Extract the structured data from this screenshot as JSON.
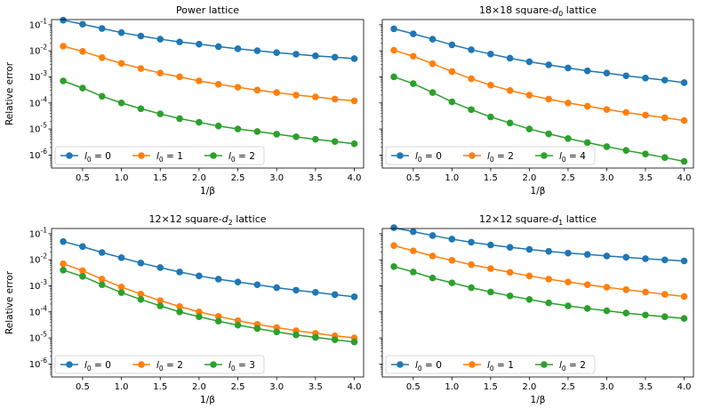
{
  "chart_data": [
    {
      "type": "line",
      "title_main": "Power lattice",
      "title_sub": "",
      "title_tail": "",
      "xlabel": "1/β",
      "ylabel": "Relative error",
      "yscale": "log",
      "ylim_exp": [
        -6.5,
        -0.8
      ],
      "xlim": [
        0.1,
        4.12
      ],
      "xticks": [
        "0.5",
        "1.0",
        "1.5",
        "2.0",
        "2.5",
        "3.0",
        "3.5",
        "4.0"
      ],
      "yticks": [
        "-1",
        "-2",
        "-3",
        "-4",
        "-5",
        "-6"
      ],
      "x": [
        0.25,
        0.5,
        0.75,
        1.0,
        1.25,
        1.5,
        1.75,
        2.0,
        2.25,
        2.5,
        2.75,
        3.0,
        3.25,
        3.5,
        3.75,
        4.0
      ],
      "series": [
        {
          "name": "0",
          "color": "#1f77b4",
          "values": [
            0.15,
            0.105,
            0.072,
            0.05,
            0.037,
            0.028,
            0.022,
            0.018,
            0.0145,
            0.012,
            0.0101,
            0.0085,
            0.0074,
            0.0064,
            0.0057,
            0.005
          ]
        },
        {
          "name": "1",
          "color": "#ff7f0e",
          "values": [
            0.015,
            0.0095,
            0.0055,
            0.0033,
            0.0021,
            0.0014,
            0.001,
            0.0007,
            0.00052,
            0.0004,
            0.00031,
            0.00025,
            0.0002,
            0.00017,
            0.00014,
            0.00012
          ]
        },
        {
          "name": "2",
          "color": "#2ca02c",
          "values": [
            0.0007,
            0.00037,
            0.00018,
            0.0001,
            6e-05,
            3.8e-05,
            2.5e-05,
            1.8e-05,
            1.3e-05,
            1e-05,
            8e-06,
            6.3e-06,
            5e-06,
            4e-06,
            3.3e-06,
            2.7e-06
          ]
        }
      ]
    },
    {
      "type": "line",
      "title_main": "18×18 square-",
      "title_sub": "0",
      "title_tail": " lattice",
      "xlabel": "1/β",
      "ylabel": "",
      "yscale": "log",
      "ylim_exp": [
        -6.5,
        -0.8
      ],
      "xlim": [
        0.1,
        4.12
      ],
      "xticks": [
        "0.5",
        "1.0",
        "1.5",
        "2.0",
        "2.5",
        "3.0",
        "3.5",
        "4.0"
      ],
      "yticks": [],
      "x": [
        0.25,
        0.5,
        0.75,
        1.0,
        1.25,
        1.5,
        1.75,
        2.0,
        2.25,
        2.5,
        2.75,
        3.0,
        3.25,
        3.5,
        3.75,
        4.0
      ],
      "series": [
        {
          "name": "0",
          "color": "#1f77b4",
          "values": [
            0.07,
            0.045,
            0.028,
            0.017,
            0.011,
            0.0075,
            0.0052,
            0.0038,
            0.0029,
            0.0022,
            0.0017,
            0.0014,
            0.0011,
            0.0009,
            0.00075,
            0.0006
          ]
        },
        {
          "name": "2",
          "color": "#ff7f0e",
          "values": [
            0.0105,
            0.0062,
            0.0032,
            0.0016,
            0.00085,
            0.00048,
            0.0003,
            0.0002,
            0.00014,
            0.0001,
            7.5e-05,
            5.6e-05,
            4.3e-05,
            3.4e-05,
            2.7e-05,
            2.1e-05
          ]
        },
        {
          "name": "4",
          "color": "#2ca02c",
          "values": [
            0.001,
            0.00055,
            0.00025,
            0.00011,
            5.5e-05,
            2.9e-05,
            1.7e-05,
            1e-05,
            6.5e-06,
            4.3e-06,
            3e-06,
            2.1e-06,
            1.5e-06,
            1.1e-06,
            8e-07,
            5.7e-07
          ]
        }
      ]
    },
    {
      "type": "line",
      "title_main": "12×12 square-",
      "title_sub": "2",
      "title_tail": " lattice",
      "xlabel": "1/β",
      "ylabel": "Relative error",
      "yscale": "log",
      "ylim_exp": [
        -6.5,
        -0.8
      ],
      "xlim": [
        0.1,
        4.12
      ],
      "xticks": [
        "0.5",
        "1.0",
        "1.5",
        "2.0",
        "2.5",
        "3.0",
        "3.5",
        "4.0"
      ],
      "yticks": [
        "-1",
        "-2",
        "-3",
        "-4",
        "-5",
        "-6"
      ],
      "x": [
        0.25,
        0.5,
        0.75,
        1.0,
        1.25,
        1.5,
        1.75,
        2.0,
        2.25,
        2.5,
        2.75,
        3.0,
        3.25,
        3.5,
        3.75,
        4.0
      ],
      "series": [
        {
          "name": "0",
          "color": "#1f77b4",
          "values": [
            0.05,
            0.032,
            0.019,
            0.012,
            0.0075,
            0.005,
            0.0034,
            0.0024,
            0.0018,
            0.0014,
            0.0011,
            0.00085,
            0.00068,
            0.00056,
            0.00046,
            0.00038
          ]
        },
        {
          "name": "2",
          "color": "#ff7f0e",
          "values": [
            0.007,
            0.0038,
            0.0018,
            0.0009,
            0.00048,
            0.00027,
            0.00016,
            0.0001,
            6.7e-05,
            4.6e-05,
            3.3e-05,
            2.5e-05,
            1.9e-05,
            1.5e-05,
            1.2e-05,
            1e-05
          ]
        },
        {
          "name": "3",
          "color": "#2ca02c",
          "values": [
            0.004,
            0.0023,
            0.0011,
            0.00055,
            0.0003,
            0.00017,
            0.0001,
            6.5e-05,
            4.4e-05,
            3.1e-05,
            2.3e-05,
            1.7e-05,
            1.3e-05,
            1.05e-05,
            8.5e-06,
            7e-06
          ]
        }
      ]
    },
    {
      "type": "line",
      "title_main": "12×12 square-",
      "title_sub": "1",
      "title_tail": " lattice",
      "xlabel": "1/β",
      "ylabel": "",
      "yscale": "log",
      "ylim_exp": [
        -6.5,
        -0.8
      ],
      "xlim": [
        0.1,
        4.12
      ],
      "xticks": [
        "0.5",
        "1.0",
        "1.5",
        "2.0",
        "2.5",
        "3.0",
        "3.5",
        "4.0"
      ],
      "yticks": [],
      "x": [
        0.25,
        0.5,
        0.75,
        1.0,
        1.25,
        1.5,
        1.75,
        2.0,
        2.25,
        2.5,
        2.75,
        3.0,
        3.25,
        3.5,
        3.75,
        4.0
      ],
      "series": [
        {
          "name": "0",
          "color": "#1f77b4",
          "values": [
            0.17,
            0.12,
            0.085,
            0.062,
            0.047,
            0.037,
            0.03,
            0.025,
            0.021,
            0.018,
            0.016,
            0.014,
            0.0125,
            0.011,
            0.0099,
            0.009
          ]
        },
        {
          "name": "1",
          "color": "#ff7f0e",
          "values": [
            0.035,
            0.022,
            0.014,
            0.0095,
            0.0065,
            0.0046,
            0.0033,
            0.0024,
            0.0018,
            0.0014,
            0.0011,
            0.00088,
            0.00071,
            0.00058,
            0.00047,
            0.00039
          ]
        },
        {
          "name": "2",
          "color": "#2ca02c",
          "values": [
            0.0055,
            0.0034,
            0.002,
            0.0013,
            0.00085,
            0.00058,
            0.00041,
            0.0003,
            0.00022,
            0.00017,
            0.000135,
            0.00011,
            9e-05,
            7.6e-05,
            6.5e-05,
            5.6e-05
          ]
        }
      ]
    }
  ]
}
